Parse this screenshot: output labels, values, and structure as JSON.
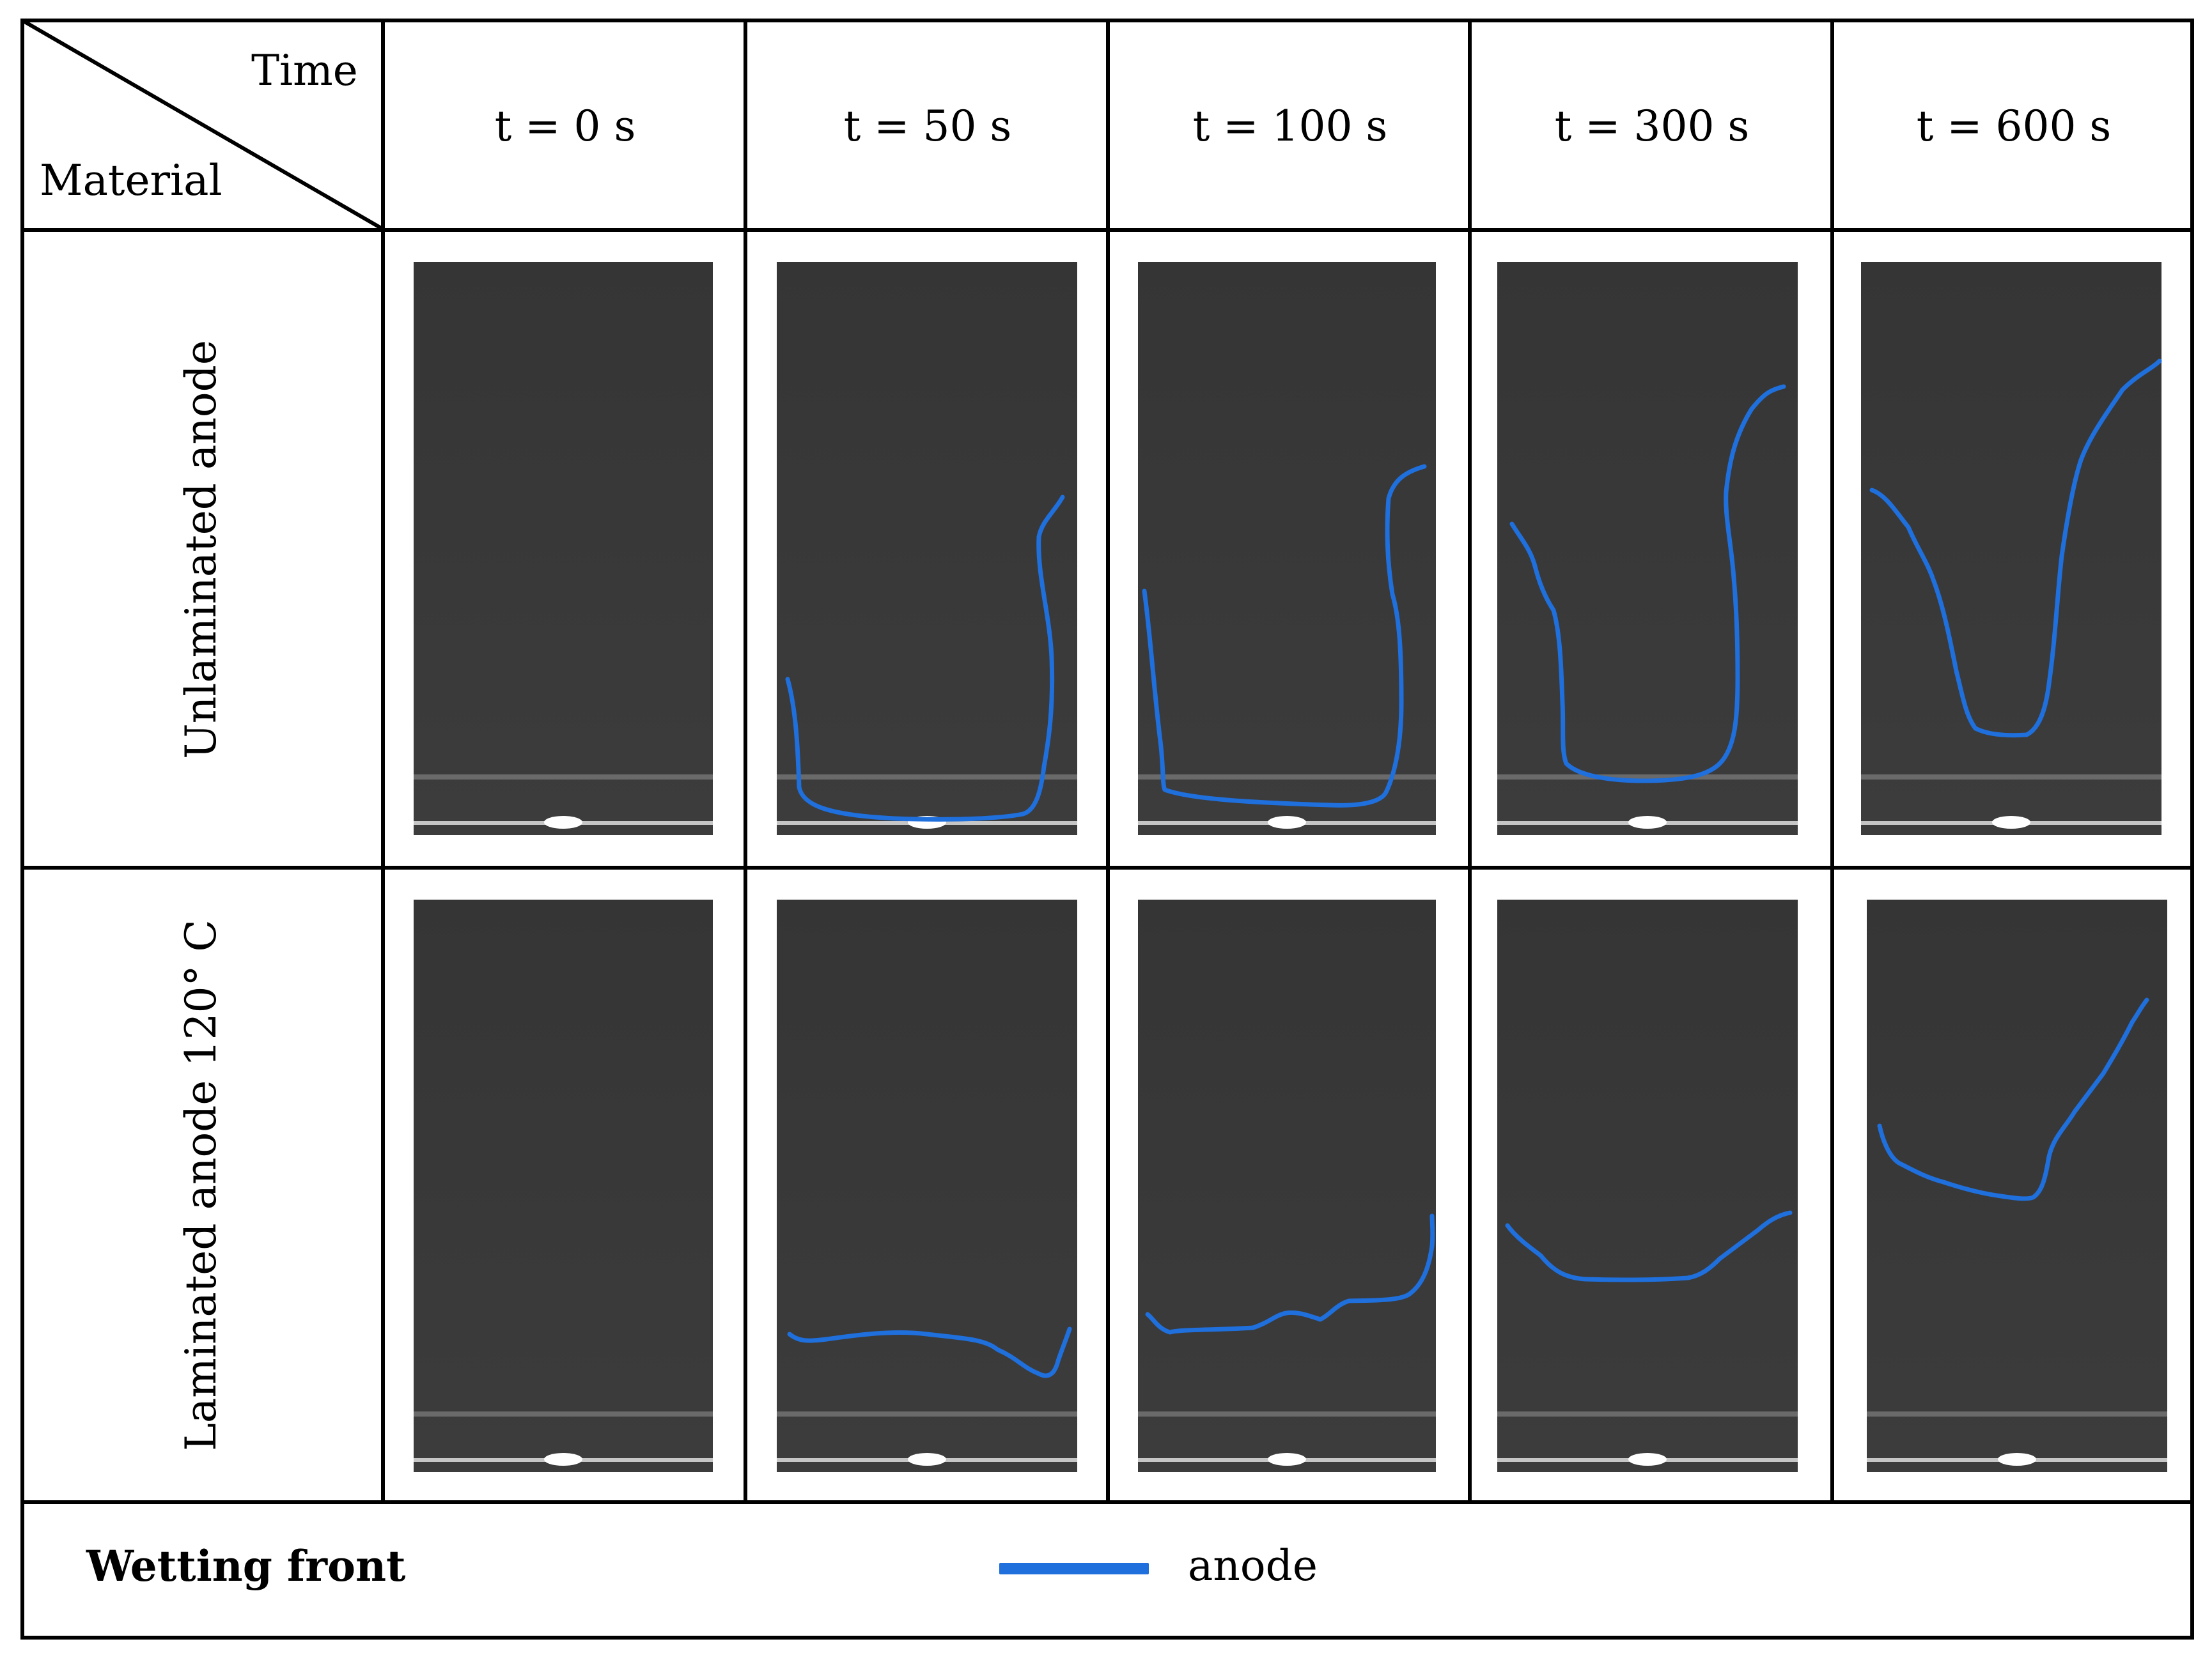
{
  "corner": {
    "time_label": "Time",
    "material_label": "Material"
  },
  "columns": [
    "t = 0 s",
    "t = 50 s",
    "t = 100 s",
    "t = 300 s",
    "t = 600 s"
  ],
  "rows": [
    "Unlaminated anode",
    "Laminated anode 120° C"
  ],
  "legend": {
    "title": "Wetting front",
    "line_label": "anode",
    "line_color": "#1f6fdc"
  },
  "photo_colors": {
    "background": "#3c3c3c",
    "top": "#353535",
    "glare": "#e8e8e8"
  }
}
